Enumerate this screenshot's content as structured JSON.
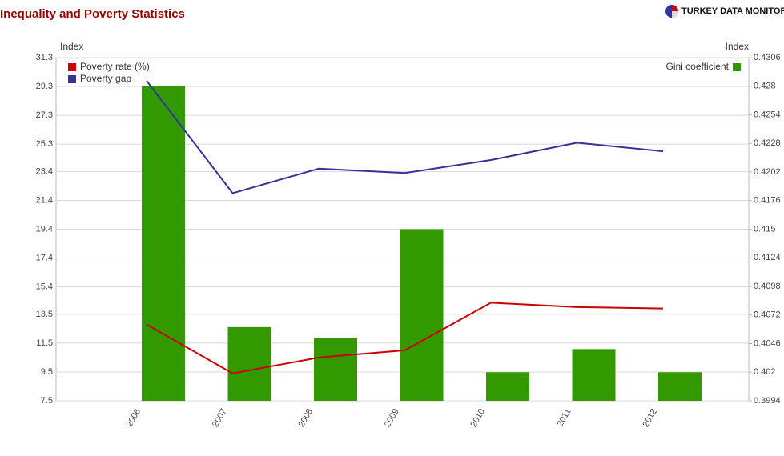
{
  "chart_data": {
    "type": "bar",
    "title": "Inequality and Poverty Statistics",
    "brand": "TURKEY DATA MONITOR",
    "y_label": "Index",
    "y2_label": "Index",
    "categories": [
      "2006",
      "2007",
      "2008",
      "2009",
      "2010",
      "2011",
      "2012"
    ],
    "series": [
      {
        "name": "Poverty rate (%)",
        "type": "line",
        "color": "#cc0000",
        "axis": "y",
        "values": [
          12.8,
          9.4,
          10.5,
          11.0,
          14.3,
          14.0,
          13.9
        ]
      },
      {
        "name": "Poverty gap",
        "type": "line",
        "color": "#333399",
        "axis": "y",
        "values": [
          29.7,
          21.9,
          23.6,
          23.3,
          24.2,
          25.4,
          24.8
        ]
      },
      {
        "name": "Gini coefficient",
        "type": "bar",
        "color": "#339900",
        "axis": "y2",
        "values": [
          0.428,
          0.4061,
          0.4051,
          0.415,
          0.402,
          0.4041,
          0.402
        ]
      }
    ],
    "ylim": [
      7.5,
      31.3
    ],
    "yticks": [
      7.5,
      9.5,
      11.5,
      13.5,
      15.4,
      17.4,
      19.4,
      21.4,
      23.4,
      25.3,
      27.3,
      29.3,
      31.3
    ],
    "y2lim": [
      0.3994,
      0.4306
    ],
    "y2ticks": [
      0.3994,
      0.402,
      0.4046,
      0.4072,
      0.4098,
      0.4124,
      0.415,
      0.4176,
      0.4202,
      0.4228,
      0.4254,
      0.428,
      0.4306
    ],
    "grid": true
  }
}
